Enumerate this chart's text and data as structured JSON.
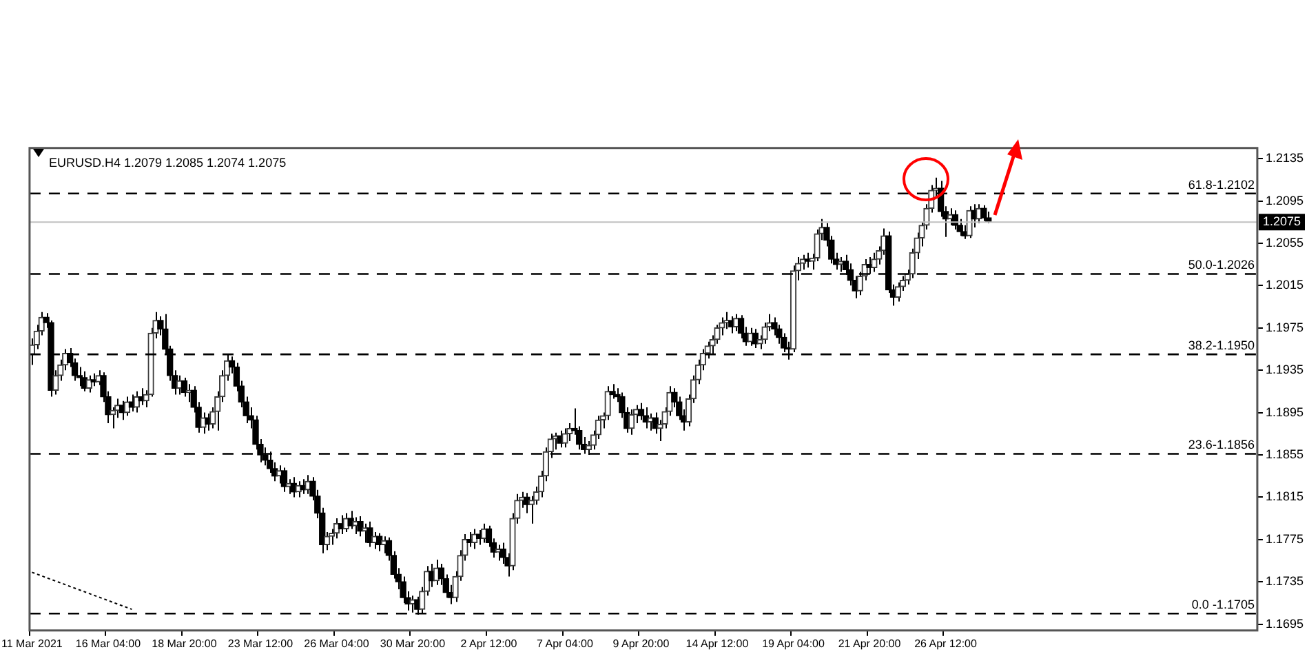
{
  "chart_data": {
    "type": "candlestick",
    "title": "EURUSD.H4 1.2079 1.2085 1.2074 1.2075",
    "categories": [
      "11 Mar 2021",
      null,
      null,
      null,
      null,
      null,
      null,
      null,
      null,
      null,
      null,
      null,
      null,
      null,
      null,
      null,
      "16 Mar 04:00",
      null,
      null,
      null,
      null,
      null,
      null,
      null,
      null,
      null,
      null,
      null,
      null,
      null,
      null,
      null,
      "18 Mar 20:00",
      null,
      null,
      null,
      null,
      null,
      null,
      null,
      null,
      null,
      null,
      null,
      null,
      null,
      null,
      null,
      "23 Mar 12:00",
      null,
      null,
      null,
      null,
      null,
      null,
      null,
      null,
      null,
      null,
      null,
      null,
      null,
      null,
      null,
      "26 Mar 04:00",
      null,
      null,
      null,
      null,
      null,
      null,
      null,
      null,
      null,
      null,
      null,
      null,
      null,
      null,
      null,
      "30 Mar 20:00",
      null,
      null,
      null,
      null,
      null,
      null,
      null,
      null,
      null,
      null,
      null,
      null,
      null,
      null,
      null,
      "2 Apr 12:00",
      null,
      null,
      null,
      null,
      null,
      null,
      null,
      null,
      null,
      null,
      null,
      null,
      null,
      null,
      null,
      "7 Apr 04:00",
      null,
      null,
      null,
      null,
      null,
      null,
      null,
      null,
      null,
      null,
      null,
      null,
      null,
      null,
      null,
      "9 Apr 20:00",
      null,
      null,
      null,
      null,
      null,
      null,
      null,
      null,
      null,
      null,
      null,
      null,
      null,
      null,
      null,
      "14 Apr 12:00",
      null,
      null,
      null,
      null,
      null,
      null,
      null,
      null,
      null,
      null,
      null,
      null,
      null,
      null,
      null,
      "19 Apr 04:00",
      null,
      null,
      null,
      null,
      null,
      null,
      null,
      null,
      null,
      null,
      null,
      null,
      null,
      null,
      null,
      "21 Apr 20:00",
      null,
      null,
      null,
      null,
      null,
      null,
      null,
      null,
      null,
      null,
      null,
      null,
      null,
      null,
      null,
      "26 Apr 12:00",
      null,
      null,
      null,
      null,
      null,
      null,
      null,
      null,
      null,
      null,
      null,
      null,
      null,
      null,
      null,
      null,
      null,
      null,
      null,
      null,
      null,
      null,
      null,
      null,
      null,
      null,
      null,
      null,
      null,
      null,
      null,
      null,
      null,
      null,
      null,
      null,
      null,
      null,
      null,
      null,
      null,
      null,
      null,
      null,
      null,
      null,
      null,
      null,
      null,
      null,
      null,
      null,
      null,
      null,
      null,
      null,
      null,
      null,
      null,
      null,
      null,
      null,
      null,
      null,
      null
    ],
    "ohlc": [
      [
        1.195,
        1.1965,
        1.194,
        1.1959
      ],
      [
        1.1959,
        1.1978,
        1.1955,
        1.1972
      ],
      [
        1.1972,
        1.199,
        1.1968,
        1.1985
      ],
      [
        1.1985,
        1.1989,
        1.1975,
        1.198
      ],
      [
        1.198,
        1.1982,
        1.191,
        1.1916
      ],
      [
        1.1916,
        1.1935,
        1.1912,
        1.193
      ],
      [
        1.193,
        1.1945,
        1.1925,
        1.194
      ],
      [
        1.194,
        1.1955,
        1.1935,
        1.1951
      ],
      [
        1.1951,
        1.1956,
        1.1938,
        1.1942
      ],
      [
        1.1942,
        1.1946,
        1.1925,
        1.193
      ],
      [
        1.193,
        1.1938,
        1.192,
        1.1928
      ],
      [
        1.1928,
        1.1934,
        1.1915,
        1.1918
      ],
      [
        1.1918,
        1.193,
        1.1914,
        1.1926
      ],
      [
        1.1926,
        1.1932,
        1.192,
        1.1924
      ],
      [
        1.1924,
        1.1935,
        1.1921,
        1.193
      ],
      [
        1.193,
        1.1933,
        1.1905,
        1.191
      ],
      [
        1.191,
        1.1915,
        1.1885,
        1.1893
      ],
      [
        1.1893,
        1.19,
        1.188,
        1.1897
      ],
      [
        1.1897,
        1.1908,
        1.189,
        1.1902
      ],
      [
        1.1902,
        1.1906,
        1.1888,
        1.1895
      ],
      [
        1.1895,
        1.191,
        1.1892,
        1.1905
      ],
      [
        1.1905,
        1.1912,
        1.1896,
        1.19
      ],
      [
        1.19,
        1.1915,
        1.1895,
        1.191
      ],
      [
        1.191,
        1.1918,
        1.1902,
        1.1906
      ],
      [
        1.1906,
        1.1916,
        1.19,
        1.1912
      ],
      [
        1.1912,
        1.1975,
        1.191,
        1.197
      ],
      [
        1.197,
        1.199,
        1.1965,
        1.1982
      ],
      [
        1.1982,
        1.1986,
        1.1968,
        1.1974
      ],
      [
        1.1974,
        1.1988,
        1.195,
        1.1955
      ],
      [
        1.1955,
        1.1958,
        1.1925,
        1.193
      ],
      [
        1.193,
        1.1935,
        1.1912,
        1.1918
      ],
      [
        1.1918,
        1.193,
        1.1912,
        1.1925
      ],
      [
        1.1925,
        1.1928,
        1.191,
        1.1914
      ],
      [
        1.1914,
        1.1922,
        1.1905,
        1.1916
      ],
      [
        1.1916,
        1.192,
        1.1895,
        1.19
      ],
      [
        1.19,
        1.1905,
        1.1876,
        1.1881
      ],
      [
        1.1881,
        1.1895,
        1.1875,
        1.189
      ],
      [
        1.189,
        1.1894,
        1.1878,
        1.1884
      ],
      [
        1.1884,
        1.19,
        1.188,
        1.1896
      ],
      [
        1.1896,
        1.1915,
        1.1878,
        1.191
      ],
      [
        1.191,
        1.1935,
        1.1905,
        1.193
      ],
      [
        1.193,
        1.195,
        1.1925,
        1.1944
      ],
      [
        1.1944,
        1.1948,
        1.1932,
        1.1938
      ],
      [
        1.1938,
        1.1942,
        1.1915,
        1.192
      ],
      [
        1.192,
        1.1925,
        1.19,
        1.1905
      ],
      [
        1.1905,
        1.191,
        1.1885,
        1.1892
      ],
      [
        1.1892,
        1.19,
        1.188,
        1.1888
      ],
      [
        1.1888,
        1.1892,
        1.186,
        1.1865
      ],
      [
        1.1865,
        1.187,
        1.1848,
        1.1855
      ],
      [
        1.1855,
        1.1862,
        1.1845,
        1.185
      ],
      [
        1.185,
        1.1858,
        1.1838,
        1.1842
      ],
      [
        1.1842,
        1.1848,
        1.183,
        1.1835
      ],
      [
        1.1835,
        1.1845,
        1.1828,
        1.184
      ],
      [
        1.184,
        1.1843,
        1.182,
        1.1825
      ],
      [
        1.1825,
        1.1832,
        1.1818,
        1.1828
      ],
      [
        1.1828,
        1.1834,
        1.1815,
        1.182
      ],
      [
        1.182,
        1.183,
        1.1815,
        1.1826
      ],
      [
        1.1826,
        1.1832,
        1.1818,
        1.1822
      ],
      [
        1.1822,
        1.1836,
        1.1818,
        1.183
      ],
      [
        1.183,
        1.1834,
        1.1812,
        1.1816
      ],
      [
        1.1816,
        1.1822,
        1.1795,
        1.18
      ],
      [
        1.18,
        1.1805,
        1.1762,
        1.177
      ],
      [
        1.177,
        1.1782,
        1.1765,
        1.1778
      ],
      [
        1.1778,
        1.1785,
        1.177,
        1.1781
      ],
      [
        1.1781,
        1.1795,
        1.1776,
        1.179
      ],
      [
        1.179,
        1.1798,
        1.178,
        1.1785
      ],
      [
        1.1785,
        1.18,
        1.1782,
        1.1795
      ],
      [
        1.1795,
        1.1802,
        1.1785,
        1.1788
      ],
      [
        1.1788,
        1.1796,
        1.178,
        1.1792
      ],
      [
        1.1792,
        1.1797,
        1.1778,
        1.1783
      ],
      [
        1.1783,
        1.179,
        1.1772,
        1.1786
      ],
      [
        1.1786,
        1.1792,
        1.1768,
        1.1772
      ],
      [
        1.1772,
        1.1782,
        1.1766,
        1.1778
      ],
      [
        1.1778,
        1.1781,
        1.1764,
        1.177
      ],
      [
        1.177,
        1.1778,
        1.1762,
        1.1774
      ],
      [
        1.1774,
        1.1777,
        1.1755,
        1.176
      ],
      [
        1.176,
        1.1764,
        1.1738,
        1.1742
      ],
      [
        1.1742,
        1.1748,
        1.1728,
        1.1735
      ],
      [
        1.1735,
        1.174,
        1.1715,
        1.172
      ],
      [
        1.172,
        1.1726,
        1.1708,
        1.1714
      ],
      [
        1.1714,
        1.1722,
        1.1706,
        1.1718
      ],
      [
        1.1718,
        1.1721,
        1.1704,
        1.1709
      ],
      [
        1.1709,
        1.173,
        1.1705,
        1.1726
      ],
      [
        1.1726,
        1.175,
        1.1722,
        1.1745
      ],
      [
        1.1745,
        1.1752,
        1.173,
        1.1736
      ],
      [
        1.1736,
        1.1756,
        1.1732,
        1.1748
      ],
      [
        1.1748,
        1.1752,
        1.1732,
        1.1738
      ],
      [
        1.1738,
        1.1742,
        1.172,
        1.1725
      ],
      [
        1.1725,
        1.1732,
        1.1714,
        1.172
      ],
      [
        1.172,
        1.1745,
        1.1716,
        1.174
      ],
      [
        1.174,
        1.1765,
        1.1736,
        1.176
      ],
      [
        1.176,
        1.178,
        1.1755,
        1.1775
      ],
      [
        1.1775,
        1.1782,
        1.1768,
        1.1772
      ],
      [
        1.1772,
        1.1785,
        1.1766,
        1.178
      ],
      [
        1.178,
        1.1784,
        1.177,
        1.1776
      ],
      [
        1.1776,
        1.179,
        1.1772,
        1.1785
      ],
      [
        1.1785,
        1.1788,
        1.1768,
        1.1772
      ],
      [
        1.1772,
        1.1776,
        1.1758,
        1.1763
      ],
      [
        1.1763,
        1.177,
        1.1755,
        1.1766
      ],
      [
        1.1766,
        1.1772,
        1.1752,
        1.1758
      ],
      [
        1.1758,
        1.1762,
        1.174,
        1.175
      ],
      [
        1.175,
        1.18,
        1.1746,
        1.1795
      ],
      [
        1.1795,
        1.1818,
        1.179,
        1.1812
      ],
      [
        1.1812,
        1.182,
        1.1805,
        1.1815
      ],
      [
        1.1815,
        1.1819,
        1.18,
        1.1808
      ],
      [
        1.1808,
        1.1816,
        1.179,
        1.1812
      ],
      [
        1.1812,
        1.1825,
        1.1808,
        1.182
      ],
      [
        1.182,
        1.184,
        1.1815,
        1.1835
      ],
      [
        1.1835,
        1.1862,
        1.183,
        1.1858
      ],
      [
        1.1858,
        1.1875,
        1.1852,
        1.187
      ],
      [
        1.187,
        1.1876,
        1.186,
        1.1873
      ],
      [
        1.1873,
        1.1878,
        1.1862,
        1.1866
      ],
      [
        1.1866,
        1.188,
        1.1862,
        1.1875
      ],
      [
        1.1875,
        1.1885,
        1.1868,
        1.188
      ],
      [
        1.188,
        1.1899,
        1.1874,
        1.1878
      ],
      [
        1.1878,
        1.1882,
        1.186,
        1.1865
      ],
      [
        1.1865,
        1.1872,
        1.1856,
        1.186
      ],
      [
        1.186,
        1.1868,
        1.1855,
        1.1864
      ],
      [
        1.1864,
        1.1878,
        1.186,
        1.1874
      ],
      [
        1.1874,
        1.1892,
        1.187,
        1.1888
      ],
      [
        1.1888,
        1.1895,
        1.188,
        1.1892
      ],
      [
        1.1892,
        1.192,
        1.1888,
        1.1915
      ],
      [
        1.1915,
        1.1922,
        1.1908,
        1.1912
      ],
      [
        1.1912,
        1.1918,
        1.1905,
        1.191
      ],
      [
        1.191,
        1.1914,
        1.189,
        1.1895
      ],
      [
        1.1895,
        1.19,
        1.1876,
        1.188
      ],
      [
        1.188,
        1.1898,
        1.1874,
        1.1893
      ],
      [
        1.1893,
        1.1902,
        1.1885,
        1.1898
      ],
      [
        1.1898,
        1.1904,
        1.1888,
        1.1892
      ],
      [
        1.1892,
        1.19,
        1.188,
        1.1886
      ],
      [
        1.1886,
        1.1894,
        1.1878,
        1.189
      ],
      [
        1.189,
        1.1895,
        1.1875,
        1.188
      ],
      [
        1.188,
        1.1888,
        1.1868,
        1.1884
      ],
      [
        1.1884,
        1.19,
        1.188,
        1.1896
      ],
      [
        1.1896,
        1.192,
        1.1892,
        1.1914
      ],
      [
        1.1914,
        1.1918,
        1.19,
        1.1905
      ],
      [
        1.1905,
        1.191,
        1.1888,
        1.1892
      ],
      [
        1.1892,
        1.1898,
        1.1878,
        1.1886
      ],
      [
        1.1886,
        1.1912,
        1.1882,
        1.1908
      ],
      [
        1.1908,
        1.193,
        1.1904,
        1.1926
      ],
      [
        1.1926,
        1.1945,
        1.1922,
        1.194
      ],
      [
        1.194,
        1.1955,
        1.1935,
        1.1951
      ],
      [
        1.1951,
        1.1962,
        1.1946,
        1.1958
      ],
      [
        1.1958,
        1.1968,
        1.195,
        1.1964
      ],
      [
        1.1964,
        1.1978,
        1.196,
        1.1975
      ],
      [
        1.1975,
        1.1985,
        1.1968,
        1.198
      ],
      [
        1.198,
        1.199,
        1.1974,
        1.1982
      ],
      [
        1.1982,
        1.1986,
        1.197,
        1.1976
      ],
      [
        1.1976,
        1.1988,
        1.1972,
        1.1984
      ],
      [
        1.1984,
        1.1987,
        1.1965,
        1.197
      ],
      [
        1.197,
        1.1976,
        1.1958,
        1.1962
      ],
      [
        1.1962,
        1.1975,
        1.1958,
        1.197
      ],
      [
        1.197,
        1.1974,
        1.1956,
        1.196
      ],
      [
        1.196,
        1.1968,
        1.1955,
        1.1964
      ],
      [
        1.1964,
        1.198,
        1.196,
        1.1976
      ],
      [
        1.1976,
        1.1988,
        1.1972,
        1.198
      ],
      [
        1.198,
        1.1985,
        1.1968,
        1.1974
      ],
      [
        1.1974,
        1.1978,
        1.196,
        1.1966
      ],
      [
        1.1966,
        1.197,
        1.1952,
        1.1956
      ],
      [
        1.1956,
        1.1962,
        1.1945,
        1.1955
      ],
      [
        1.1955,
        1.2034,
        1.1952,
        1.2029
      ],
      [
        1.2029,
        1.2042,
        1.202,
        1.2036
      ],
      [
        1.2036,
        1.2044,
        1.203,
        1.204
      ],
      [
        1.204,
        1.2046,
        1.2032,
        1.2038
      ],
      [
        1.2038,
        1.2045,
        1.203,
        1.2041
      ],
      [
        1.2041,
        1.2068,
        1.2038,
        1.2064
      ],
      [
        1.2064,
        1.2078,
        1.2058,
        1.207
      ],
      [
        1.207,
        1.2074,
        1.2052,
        1.2058
      ],
      [
        1.2058,
        1.2062,
        1.2036,
        1.204
      ],
      [
        1.204,
        1.2046,
        1.203,
        1.2035
      ],
      [
        1.2035,
        1.2042,
        1.2028,
        1.2038
      ],
      [
        1.2038,
        1.2044,
        1.2025,
        1.203
      ],
      [
        1.203,
        1.2036,
        1.2015,
        1.202
      ],
      [
        1.202,
        1.2024,
        1.2003,
        1.201
      ],
      [
        1.201,
        1.2028,
        1.2006,
        1.2024
      ],
      [
        1.2024,
        1.204,
        1.202,
        1.2035
      ],
      [
        1.2035,
        1.2042,
        1.2026,
        1.2032
      ],
      [
        1.2032,
        1.2046,
        1.2028,
        1.204
      ],
      [
        1.204,
        1.2052,
        1.2035,
        1.2048
      ],
      [
        1.2048,
        1.2069,
        1.2044,
        1.2062
      ],
      [
        1.2062,
        1.2066,
        1.2008,
        1.2011
      ],
      [
        1.2011,
        1.2016,
        1.1996,
        1.2004
      ],
      [
        1.2004,
        1.2018,
        1.2,
        1.2014
      ],
      [
        1.2014,
        1.2024,
        1.201,
        1.202
      ],
      [
        1.202,
        1.203,
        1.2016,
        1.2026
      ],
      [
        1.2026,
        1.205,
        1.2022,
        1.2046
      ],
      [
        1.2046,
        1.2065,
        1.204,
        1.206
      ],
      [
        1.206,
        1.2075,
        1.2052,
        1.2072
      ],
      [
        1.2072,
        1.2092,
        1.2068,
        1.2088
      ],
      [
        1.2088,
        1.211,
        1.2084,
        1.2105
      ],
      [
        1.2105,
        1.2117,
        1.2098,
        1.2107
      ],
      [
        1.2107,
        1.2114,
        1.208,
        1.2085
      ],
      [
        1.2085,
        1.209,
        1.2061,
        1.2078
      ],
      [
        1.2078,
        1.2088,
        1.2072,
        1.2082
      ],
      [
        1.2082,
        1.2086,
        1.2068,
        1.2072
      ],
      [
        1.2072,
        1.2078,
        1.2062,
        1.2066
      ],
      [
        1.2066,
        1.2072,
        1.2059,
        1.2062
      ],
      [
        1.2062,
        1.209,
        1.206,
        1.2086
      ],
      [
        1.2086,
        1.2092,
        1.207,
        1.2078
      ],
      [
        1.2078,
        1.2092,
        1.2074,
        1.2088
      ],
      [
        1.2088,
        1.2091,
        1.2076,
        1.2079
      ],
      [
        1.2079,
        1.2085,
        1.2074,
        1.2075
      ],
      null,
      null,
      null,
      null,
      null,
      null,
      null,
      null,
      null,
      null,
      null,
      null,
      null,
      null,
      null,
      null,
      null,
      null,
      null,
      null,
      null,
      null,
      null,
      null,
      null,
      null,
      null,
      null,
      null,
      null,
      null,
      null,
      null,
      null,
      null,
      null,
      null,
      null,
      null,
      null,
      null,
      null,
      null,
      null,
      null,
      null,
      null,
      null,
      null,
      null,
      null,
      null,
      null,
      null,
      null,
      null
    ],
    "series": [
      {
        "type": "line",
        "color": "#000000",
        "line_style": "dotted",
        "marker": "none",
        "values": [
          1.1744,
          null,
          null,
          null,
          null,
          null,
          null,
          null,
          null,
          null,
          null,
          null,
          null,
          null,
          null,
          null,
          null,
          null,
          null,
          null,
          null,
          1.1709,
          null,
          null,
          null,
          null,
          null,
          null,
          null,
          null,
          null,
          null,
          null,
          null,
          null,
          null,
          null,
          null,
          null,
          null,
          null,
          null,
          null,
          null,
          null,
          null,
          null,
          null,
          null,
          null,
          null,
          null,
          null,
          null,
          null,
          null,
          null,
          null,
          null,
          null,
          null,
          null,
          null,
          null,
          null,
          null,
          null,
          null,
          null,
          null,
          null,
          null,
          null,
          null,
          null,
          null,
          null,
          null,
          null,
          null,
          null,
          null,
          null,
          null,
          null,
          null,
          null,
          null,
          null,
          null,
          null,
          null,
          null,
          null,
          null,
          null,
          null,
          null,
          null,
          null,
          null,
          null,
          null,
          null,
          null,
          null,
          null,
          null,
          null,
          null,
          null,
          null,
          null,
          null,
          null,
          null,
          null,
          null,
          null,
          null,
          null,
          null,
          null,
          null,
          null,
          null,
          null,
          null,
          null,
          null,
          null,
          null,
          null,
          null,
          null,
          null,
          null,
          null,
          null,
          null,
          null,
          null,
          null,
          null,
          null,
          null,
          null,
          null,
          null,
          null,
          null,
          null,
          null,
          null,
          null,
          null,
          null,
          null,
          null,
          null,
          null,
          null,
          null,
          null,
          null,
          null,
          null,
          null,
          null,
          null,
          null,
          null,
          null,
          null,
          null,
          null,
          null,
          null,
          null,
          null,
          null,
          null,
          null,
          null,
          null,
          null,
          null,
          null,
          null,
          null,
          null,
          null,
          null,
          null,
          null,
          null,
          null,
          null,
          null,
          null,
          null,
          null,
          null,
          null,
          null,
          null,
          null,
          null,
          null,
          null,
          null,
          null,
          null,
          null,
          null,
          null,
          null,
          null,
          null,
          null,
          null,
          null,
          null,
          null,
          null,
          null,
          null,
          null,
          null,
          null,
          null,
          null,
          null,
          null,
          null,
          null,
          null,
          null,
          null,
          null,
          null,
          null,
          null,
          null,
          null,
          null,
          null,
          null,
          null,
          null,
          null,
          null,
          null,
          null,
          null,
          null,
          null,
          null
        ]
      }
    ],
    "ylim": [
      1.1689,
      1.2145
    ],
    "yticks": [
      1.1695,
      1.1735,
      1.1775,
      1.1815,
      1.1855,
      1.1895,
      1.1935,
      1.1975,
      1.2015,
      1.2055,
      1.2095,
      1.2135
    ],
    "annotations": [
      {
        "text": "61.8-1.2102",
        "y": 1.2102
      },
      {
        "text": "50.0-1.2026",
        "y": 1.2026
      },
      {
        "text": "38.2-1.1950",
        "y": 1.195
      },
      {
        "text": "23.6-1.1856",
        "y": 1.1856
      },
      {
        "text": "0.0 -1.1705",
        "y": 1.1705
      }
    ],
    "ref_lines": [
      {
        "axis": "y",
        "value": 1.2102,
        "color": "#000000",
        "line_style": "dashed"
      },
      {
        "axis": "y",
        "value": 1.2026,
        "color": "#000000",
        "line_style": "dashed"
      },
      {
        "axis": "y",
        "value": 1.195,
        "color": "#000000",
        "line_style": "dashed"
      },
      {
        "axis": "y",
        "value": 1.1856,
        "color": "#000000",
        "line_style": "dashed"
      },
      {
        "axis": "y",
        "value": 1.1705,
        "color": "#000000",
        "line_style": "dashed"
      },
      {
        "axis": "y",
        "value": 1.2075,
        "label": "1.2075",
        "color": "#c0c0c0",
        "line_style": "solid"
      }
    ],
    "grid": false,
    "legend": false
  }
}
